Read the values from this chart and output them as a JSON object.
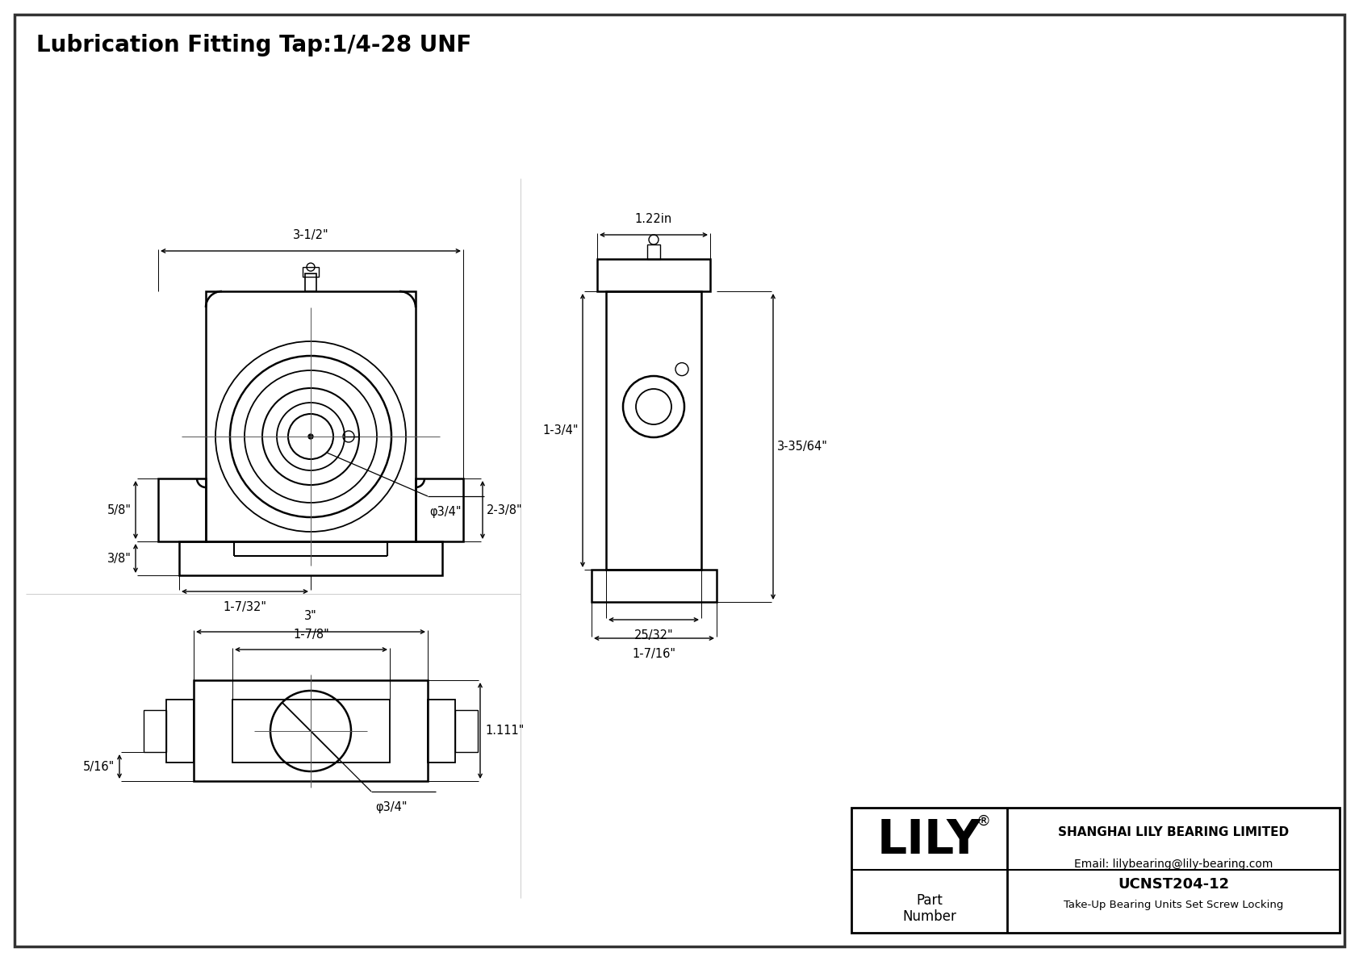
{
  "bg_color": "#ffffff",
  "line_color": "#000000",
  "title": "Lubrication Fitting Tap:1/4-28 UNF",
  "title_fontsize": 20,
  "border_color": "#333333",
  "dim_color": "#000000",
  "logo_text": "LILY",
  "logo_super": "®",
  "company": "SHANGHAI LILY BEARING LIMITED",
  "email": "Email: lilybearing@lily-bearing.com",
  "part_label": "Part\nNumber",
  "part_number": "UCNST204-12",
  "part_desc": "Take-Up Bearing Units Set Screw Locking",
  "dims_front": {
    "width_top": "3-1/2\"",
    "height_right": "2-3/8\"",
    "height_left_top": "5/8\"",
    "height_left_bot": "3/8\"",
    "bore_label": "φ3/4\"",
    "width_bot_half": "1-7/32\""
  },
  "dims_side": {
    "width_top": "1.22in",
    "height_right": "3-35/64\"",
    "height_left": "1-3/4\"",
    "width_inner": "25/32\"",
    "width_outer": "1-7/16\""
  },
  "dims_bottom": {
    "width_outer": "3\"",
    "width_inner": "1-7/8\"",
    "height": "1.111\"",
    "bore": "φ3/4\"",
    "side_dim": "5/16\""
  }
}
